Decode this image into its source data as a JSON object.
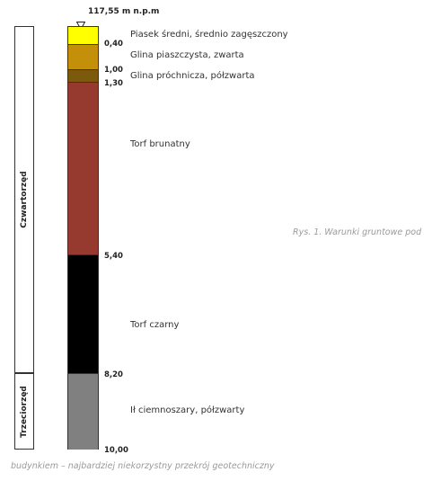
{
  "elevation": "117,55 m n.p.m",
  "eras": [
    {
      "label": "Czwartorzęd"
    },
    {
      "label": "Trzeciorzęd"
    }
  ],
  "layers": [
    {
      "top_depth": 0.0,
      "bottom_depth": 0.4,
      "color": "#FFFF00",
      "name": "Piasek średni, średnio zagęszczony"
    },
    {
      "top_depth": 0.4,
      "bottom_depth": 1.0,
      "color": "#C4900A",
      "name": "Glina piaszczysta, zwarta"
    },
    {
      "top_depth": 1.0,
      "bottom_depth": 1.3,
      "color": "#7B5A0E",
      "name": "Glina próchnicza, półzwarta"
    },
    {
      "top_depth": 1.3,
      "bottom_depth": 5.4,
      "color": "#963A30",
      "name": "Torf brunatny"
    },
    {
      "top_depth": 5.4,
      "bottom_depth": 8.2,
      "color": "#000000",
      "name": "Torf czarny"
    },
    {
      "top_depth": 8.2,
      "bottom_depth": 10.0,
      "color": "#808080",
      "name": "Ił ciemnoszary, półzwarty"
    }
  ],
  "depth_labels": [
    "0,40",
    "1,00",
    "1,30",
    "5,40",
    "8,20",
    "10,00"
  ],
  "caption": {
    "right": "Rys. 1. Warunki gruntowe pod",
    "bottom": "budynkiem – najbardziej niekorzystny przekrój geotechniczny"
  }
}
